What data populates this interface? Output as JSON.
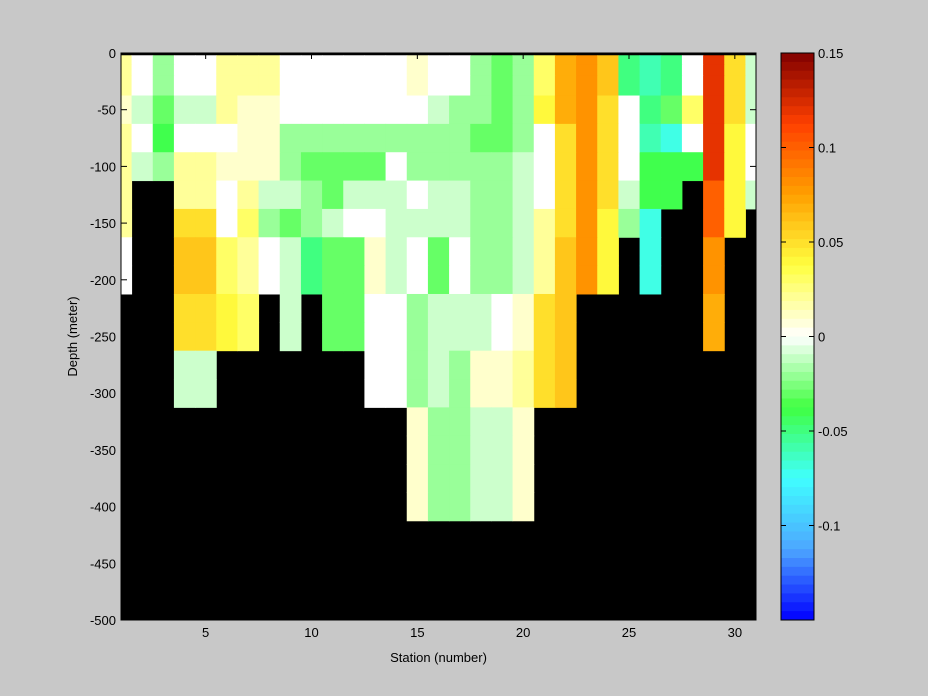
{
  "chart_data": {
    "type": "heatmap",
    "xlabel": "Station (number)",
    "ylabel": "Depth (meter)",
    "xlim": [
      1,
      31
    ],
    "ylim": [
      -500,
      0
    ],
    "x_ticks": [
      5,
      10,
      15,
      20,
      25,
      30
    ],
    "y_ticks": [
      0,
      -50,
      -100,
      -150,
      -200,
      -250,
      -300,
      -350,
      -400,
      -450,
      -500
    ],
    "stations": [
      1,
      2,
      3,
      4,
      5,
      6,
      7,
      8,
      9,
      10,
      11,
      12,
      13,
      14,
      15,
      16,
      17,
      18,
      19,
      20,
      21,
      22,
      23,
      24,
      25,
      26,
      27,
      28,
      29,
      30,
      31
    ],
    "depth_rows": [
      -5,
      -15,
      -25,
      -50,
      -75,
      -100,
      -125,
      -150,
      -175,
      -200,
      -225,
      -250,
      -275,
      -300,
      -325,
      -350,
      -375,
      -400
    ],
    "values": [
      [
        0.02,
        0.0,
        -0.02,
        0.0,
        0.0,
        0.02,
        0.02,
        0.02,
        0.0,
        0.0,
        0.0,
        0.0,
        0.0,
        0.0,
        0.01,
        0.0,
        0.0,
        -0.02,
        -0.03,
        -0.02,
        0.03,
        0.07,
        0.08,
        0.06,
        -0.05,
        -0.06,
        -0.05,
        0.0,
        0.12,
        0.05,
        -0.01
      ],
      [
        0.02,
        0.0,
        -0.02,
        0.0,
        0.0,
        0.02,
        0.02,
        0.02,
        0.0,
        0.0,
        0.0,
        0.0,
        0.0,
        0.0,
        0.01,
        0.0,
        0.0,
        -0.02,
        -0.03,
        -0.02,
        0.03,
        0.07,
        0.08,
        0.06,
        -0.05,
        -0.06,
        -0.05,
        0.0,
        0.12,
        0.05,
        -0.01
      ],
      [
        0.02,
        0.0,
        -0.02,
        0.0,
        0.0,
        0.02,
        0.02,
        0.02,
        0.0,
        0.0,
        0.0,
        0.0,
        0.0,
        0.0,
        0.01,
        0.0,
        0.0,
        -0.02,
        -0.03,
        -0.02,
        0.03,
        0.07,
        0.08,
        0.06,
        -0.05,
        -0.06,
        -0.05,
        0.0,
        0.12,
        0.05,
        -0.01
      ],
      [
        0.01,
        -0.01,
        -0.03,
        -0.01,
        -0.01,
        0.02,
        0.01,
        0.01,
        0.0,
        0.0,
        0.0,
        0.0,
        0.0,
        0.0,
        0.0,
        -0.01,
        -0.02,
        -0.02,
        -0.03,
        -0.02,
        0.04,
        0.07,
        0.08,
        0.05,
        0.0,
        -0.05,
        -0.03,
        0.03,
        0.12,
        0.05,
        -0.01
      ],
      [
        0.02,
        0.0,
        -0.04,
        0.0,
        0.0,
        0.0,
        0.01,
        0.01,
        -0.02,
        -0.02,
        -0.02,
        -0.02,
        -0.02,
        -0.02,
        -0.02,
        -0.02,
        -0.02,
        -0.03,
        -0.03,
        -0.02,
        0.0,
        0.05,
        0.08,
        0.05,
        0.0,
        -0.06,
        -0.07,
        0.0,
        0.12,
        0.04,
        0.0
      ],
      [
        0.02,
        -0.01,
        -0.02,
        0.02,
        0.02,
        0.01,
        0.01,
        0.01,
        -0.02,
        -0.03,
        -0.03,
        -0.03,
        -0.03,
        0.0,
        -0.02,
        -0.02,
        -0.02,
        -0.02,
        -0.02,
        -0.01,
        0.0,
        0.05,
        0.08,
        0.05,
        0.0,
        -0.04,
        -0.04,
        -0.04,
        0.12,
        0.04,
        0.0
      ],
      [
        0.02,
        null,
        null,
        0.02,
        0.02,
        0.0,
        0.02,
        -0.01,
        -0.01,
        -0.02,
        -0.03,
        -0.01,
        -0.01,
        -0.01,
        0.0,
        -0.01,
        -0.01,
        -0.02,
        -0.02,
        -0.01,
        0.0,
        0.05,
        0.08,
        0.05,
        -0.01,
        -0.04,
        -0.04,
        null,
        0.1,
        0.04,
        -0.01
      ],
      [
        0.02,
        null,
        null,
        0.05,
        0.05,
        0.0,
        0.03,
        -0.02,
        -0.03,
        -0.02,
        -0.01,
        0.0,
        0.0,
        -0.01,
        -0.01,
        -0.01,
        -0.01,
        -0.02,
        -0.02,
        -0.01,
        0.02,
        0.05,
        0.08,
        0.04,
        -0.02,
        -0.07,
        null,
        null,
        0.1,
        0.04,
        null
      ],
      [
        0.0,
        null,
        null,
        0.06,
        0.06,
        0.03,
        0.02,
        0.0,
        -0.01,
        -0.05,
        -0.03,
        -0.03,
        0.01,
        -0.01,
        0.0,
        -0.03,
        0.0,
        -0.02,
        -0.02,
        -0.01,
        0.02,
        0.06,
        0.08,
        0.04,
        null,
        -0.07,
        null,
        null,
        0.08,
        null,
        null
      ],
      [
        0.0,
        null,
        null,
        0.06,
        0.06,
        0.03,
        0.02,
        0.0,
        -0.01,
        -0.05,
        -0.03,
        -0.03,
        0.01,
        -0.01,
        0.0,
        -0.03,
        0.0,
        -0.02,
        -0.02,
        -0.01,
        0.02,
        0.06,
        0.08,
        0.04,
        null,
        -0.07,
        null,
        null,
        0.08,
        null,
        null
      ],
      [
        null,
        null,
        null,
        0.05,
        0.05,
        0.04,
        0.03,
        null,
        -0.01,
        null,
        -0.03,
        -0.03,
        0.0,
        0.0,
        -0.02,
        -0.01,
        -0.01,
        -0.01,
        0.0,
        0.01,
        0.05,
        0.06,
        null,
        null,
        null,
        null,
        null,
        null,
        0.07,
        null,
        null
      ],
      [
        null,
        null,
        null,
        0.05,
        0.05,
        0.04,
        0.03,
        null,
        -0.01,
        null,
        -0.03,
        -0.03,
        0.0,
        0.0,
        -0.02,
        -0.01,
        -0.01,
        -0.01,
        0.0,
        0.01,
        0.05,
        0.06,
        null,
        null,
        null,
        null,
        null,
        null,
        0.07,
        null,
        null
      ],
      [
        null,
        null,
        null,
        -0.01,
        -0.01,
        null,
        null,
        null,
        null,
        null,
        null,
        null,
        0.0,
        0.0,
        -0.02,
        -0.01,
        -0.02,
        0.01,
        0.01,
        0.02,
        0.05,
        0.06,
        null,
        null,
        null,
        null,
        null,
        null,
        null,
        null,
        null
      ],
      [
        null,
        null,
        null,
        -0.01,
        -0.01,
        null,
        null,
        null,
        null,
        null,
        null,
        null,
        0.0,
        0.0,
        -0.02,
        -0.01,
        -0.02,
        0.01,
        0.01,
        0.02,
        0.05,
        0.06,
        null,
        null,
        null,
        null,
        null,
        null,
        null,
        null,
        null
      ],
      [
        null,
        null,
        null,
        null,
        null,
        null,
        null,
        null,
        null,
        null,
        null,
        null,
        null,
        null,
        0.01,
        -0.02,
        -0.02,
        -0.01,
        -0.01,
        0.01,
        null,
        null,
        null,
        null,
        null,
        null,
        null,
        null,
        null,
        null,
        null
      ],
      [
        null,
        null,
        null,
        null,
        null,
        null,
        null,
        null,
        null,
        null,
        null,
        null,
        null,
        null,
        0.01,
        -0.02,
        -0.02,
        -0.01,
        -0.01,
        0.01,
        null,
        null,
        null,
        null,
        null,
        null,
        null,
        null,
        null,
        null,
        null
      ],
      [
        null,
        null,
        null,
        null,
        null,
        null,
        null,
        null,
        null,
        null,
        null,
        null,
        null,
        null,
        0.01,
        -0.02,
        -0.02,
        -0.01,
        -0.01,
        0.01,
        null,
        null,
        null,
        null,
        null,
        null,
        null,
        null,
        null,
        null,
        null
      ],
      [
        null,
        null,
        null,
        null,
        null,
        null,
        null,
        null,
        null,
        null,
        null,
        null,
        null,
        null,
        0.01,
        -0.02,
        -0.02,
        -0.01,
        -0.01,
        0.01,
        null,
        null,
        null,
        null,
        null,
        null,
        null,
        null,
        null,
        null,
        null
      ]
    ],
    "colorbar": {
      "clim": [
        -0.15,
        0.15
      ],
      "ticks": [
        0.15,
        0.1,
        0.05,
        0,
        -0.05,
        -0.1
      ],
      "tick_labels": [
        "0.15",
        "0.1",
        "0.05",
        "0",
        "-0.05",
        "-0.1"
      ],
      "colors": [
        "#0000ff",
        "#4da6ff",
        "#40ffff",
        "#40ff40",
        "#ffffff",
        "#ffff40",
        "#ffa000",
        "#ff4000",
        "#800000"
      ]
    },
    "nodata_color": "#000000",
    "background_color": "#c8c8c8"
  }
}
